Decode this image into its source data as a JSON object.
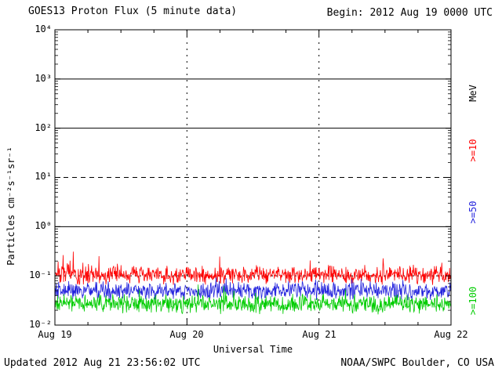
{
  "header": {
    "title": "GOES13 Proton Flux (5 minute data)",
    "begin_label": "Begin: 2012 Aug 19 0000 UTC"
  },
  "footer": {
    "updated": "Updated 2012 Aug 21 23:56:02 UTC",
    "source": "NOAA/SWPC Boulder, CO USA"
  },
  "chart_data": {
    "type": "line",
    "title": "GOES13 Proton Flux (5 minute data)",
    "xlabel": "Universal Time",
    "ylabel": "Particles cm⁻²s⁻¹sr⁻¹",
    "right_axis_title": "MeV",
    "y_scale": "log",
    "ylim": [
      0.01,
      10000
    ],
    "ylim_exp": [
      -2,
      4
    ],
    "x_range_days": 3,
    "cadence": "5 minute",
    "points_per_series": 864,
    "seed": 20120819,
    "x_ticks": [
      {
        "label": "Aug 19",
        "day": 0
      },
      {
        "label": "Aug 20",
        "day": 1
      },
      {
        "label": "Aug 21",
        "day": 2
      },
      {
        "label": "Aug 22",
        "day": 3
      }
    ],
    "y_ticks": [
      {
        "label": "10⁴",
        "exp": 4
      },
      {
        "label": "10³",
        "exp": 3
      },
      {
        "label": "10²",
        "exp": 2
      },
      {
        "label": "10¹",
        "exp": 1
      },
      {
        "label": "10⁰",
        "exp": 0
      },
      {
        "label": "10⁻¹",
        "exp": -1
      },
      {
        "label": "10⁻²",
        "exp": -2
      }
    ],
    "grid_h_lines": [
      {
        "exp": 3,
        "style": "solid"
      },
      {
        "exp": 2,
        "style": "solid"
      },
      {
        "exp": 1,
        "style": "dashed"
      },
      {
        "exp": 0,
        "style": "solid"
      },
      {
        "exp": -1,
        "style": "dotted"
      }
    ],
    "grid_v_days": [
      1,
      2
    ],
    "series": [
      {
        "name": ">=10 MeV protons",
        "label": ">=10",
        "color": "#ff0000",
        "baseline_flux": 0.105,
        "approx_range": [
          0.06,
          0.5
        ],
        "log_spread": 0.22,
        "spike_prob": 0.05,
        "spike_log": 0.45
      },
      {
        "name": ">=50 MeV protons",
        "label": ">=50",
        "color": "#2222dd",
        "baseline_flux": 0.05,
        "approx_range": [
          0.03,
          0.12
        ],
        "log_spread": 0.2,
        "spike_prob": 0.03,
        "spike_log": 0.25
      },
      {
        "name": ">=100 MeV protons",
        "label": ">=100",
        "color": "#00cc00",
        "baseline_flux": 0.027,
        "approx_range": [
          0.015,
          0.06
        ],
        "log_spread": 0.22,
        "spike_prob": 0.03,
        "spike_log": 0.3
      }
    ]
  }
}
